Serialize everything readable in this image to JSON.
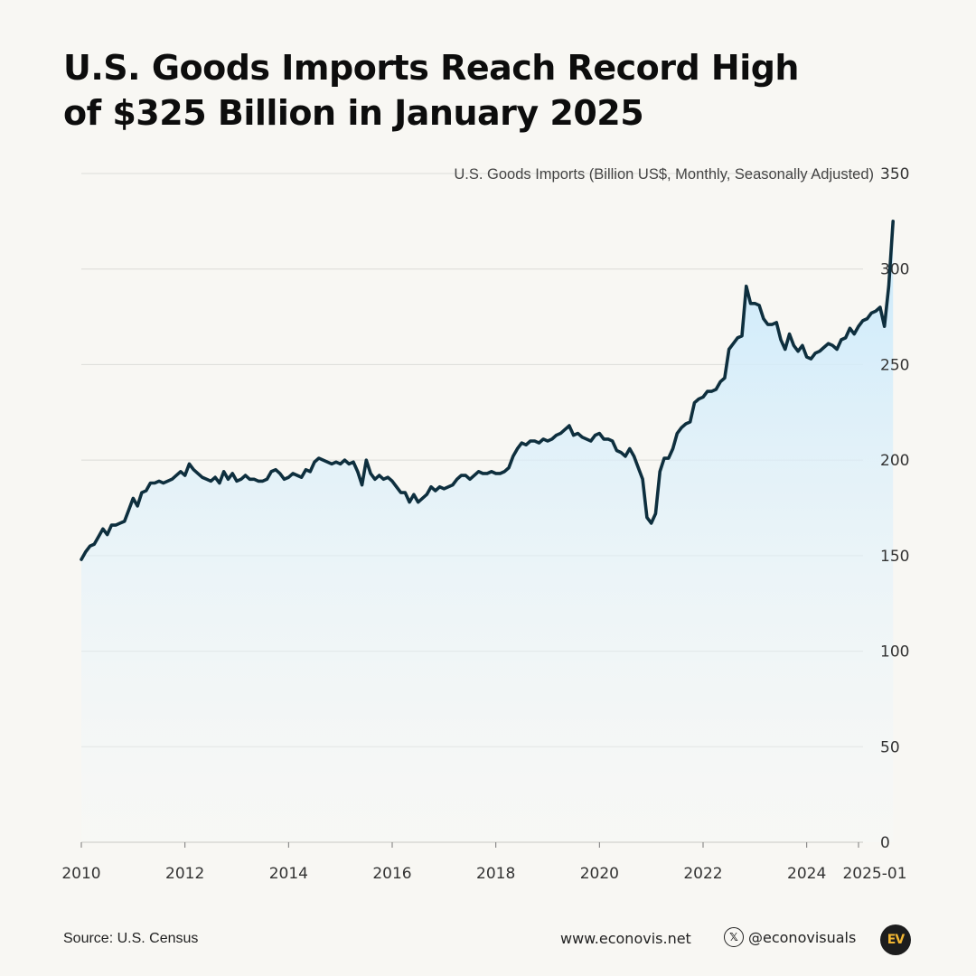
{
  "title_lines": [
    "U.S. Goods Imports Reach Record High",
    "of $325 Billion in January 2025"
  ],
  "footer": {
    "source": "Source: U.S. Census",
    "website": "www.econovis.net",
    "social_handle": "@econovisuals",
    "social_icon": "x-logo-icon",
    "social_icon_glyph": "𝕏",
    "logo_text": "EV"
  },
  "colors": {
    "line": "#0e2f3e",
    "area_top": "#c9e9fb",
    "area_bottom": "#f5f9fb",
    "grid": "#dcdcd8",
    "logo_bg": "#1d1d1d",
    "logo_text": "#f2b632"
  },
  "chart_data": {
    "type": "area",
    "ylabel": "U.S. Goods Imports (Billion US$, Monthly, Seasonally Adjusted)",
    "y_ticks": [
      0,
      50,
      100,
      150,
      200,
      250,
      300,
      350
    ],
    "ylim": [
      0,
      350
    ],
    "x_ticks": [
      "2010",
      "2012",
      "2014",
      "2016",
      "2018",
      "2020",
      "2022",
      "2024",
      "2025-01"
    ],
    "x_tick_dates": [
      "2010-01",
      "2012-01",
      "2014-01",
      "2016-01",
      "2018-01",
      "2020-01",
      "2022-01",
      "2024-01",
      "2025-01"
    ],
    "xlim": [
      "2010-01",
      "2025-01"
    ],
    "y_axis_position": "right",
    "grid": "horizontal",
    "frequency": "monthly",
    "start": "2010-01",
    "series": [
      {
        "values": [
          148,
          152,
          155,
          156,
          160,
          164,
          161,
          166,
          166,
          167,
          168,
          174,
          180,
          176,
          183,
          184,
          188,
          188,
          189,
          188,
          189,
          190,
          192,
          194,
          192,
          198,
          195,
          193,
          191,
          190,
          189,
          191,
          188,
          194,
          190,
          193,
          189,
          190,
          192,
          190,
          190,
          189,
          189,
          190,
          194,
          195,
          193,
          190,
          191,
          193,
          192,
          191,
          195,
          194,
          199,
          201,
          200,
          199,
          198,
          199,
          198,
          200,
          198,
          199,
          194,
          187,
          200,
          193,
          190,
          192,
          190,
          191,
          189,
          186,
          183,
          183,
          178,
          182,
          178,
          180,
          182,
          186,
          184,
          186,
          185,
          186,
          187,
          190,
          192,
          192,
          190,
          192,
          194,
          193,
          193,
          194,
          193,
          193,
          194,
          196,
          202,
          206,
          209,
          208,
          210,
          210,
          209,
          211,
          210,
          211,
          213,
          214,
          216,
          218,
          213,
          214,
          212,
          211,
          210,
          213,
          214,
          211,
          211,
          210,
          205,
          204,
          202,
          206,
          202,
          196,
          190,
          170,
          167,
          172,
          194,
          201,
          201,
          206,
          214,
          217,
          219,
          220,
          230,
          232,
          233,
          236,
          236,
          237,
          241,
          243,
          258,
          261,
          264,
          265,
          291,
          282,
          282,
          281,
          274,
          271,
          271,
          272,
          263,
          258,
          266,
          260,
          257,
          260,
          254,
          253,
          256,
          257,
          259,
          261,
          260,
          258,
          263,
          264,
          269,
          266,
          270,
          273,
          274,
          277,
          278,
          280,
          270,
          291,
          325
        ]
      }
    ]
  }
}
